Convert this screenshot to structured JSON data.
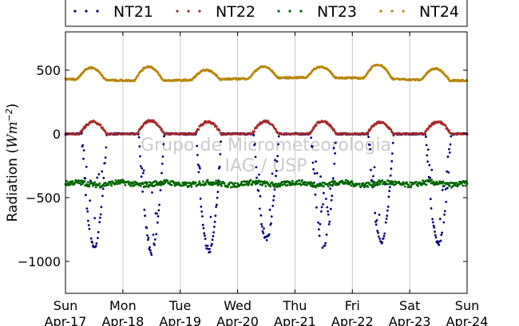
{
  "chart_data": {
    "type": "scatter",
    "title": "",
    "xlabel": "",
    "ylabel_main": "Radiation (",
    "ylabel_unit": "Wm",
    "ylabel_exp": "−2",
    "ylabel_close": ")",
    "ylim": [
      -1250,
      800
    ],
    "xlim_days": [
      0,
      7
    ],
    "y_ticks": [
      500,
      0,
      -500,
      -1000
    ],
    "y_tick_labels": [
      "500",
      "0",
      "−500",
      "−1000"
    ],
    "x_tick_days": [
      "Sun",
      "Mon",
      "Tue",
      "Wed",
      "Thu",
      "Fri",
      "Sat",
      "Sun"
    ],
    "x_tick_dates": [
      "Apr-17",
      "Apr-18",
      "Apr-19",
      "Apr-20",
      "Apr-21",
      "Apr-22",
      "Apr-23",
      "Apr-24"
    ],
    "grid": "vertical",
    "legend": "top",
    "watermark": [
      "Grupo de Micrometeorologia",
      "IAG / USP"
    ],
    "series": [
      {
        "name": "NT21",
        "color": "#00007a",
        "baseline": 0,
        "note": "nighttime near 0, daytime troughs",
        "daily_min": [
          -880,
          -930,
          -920,
          -820,
          -890,
          -840,
          -860
        ]
      },
      {
        "name": "NT22",
        "color": "#a52a2a",
        "baseline": 0,
        "daily_max": [
          95,
          105,
          95,
          100,
          100,
          90,
          95
        ]
      },
      {
        "name": "NT23",
        "color": "#006400",
        "baseline": -390,
        "range": [
          -430,
          -350
        ]
      },
      {
        "name": "NT24",
        "color": "#b8860b",
        "baseline": 430,
        "daily_max": [
          525,
          540,
          505,
          520,
          515,
          540,
          520
        ]
      }
    ]
  }
}
